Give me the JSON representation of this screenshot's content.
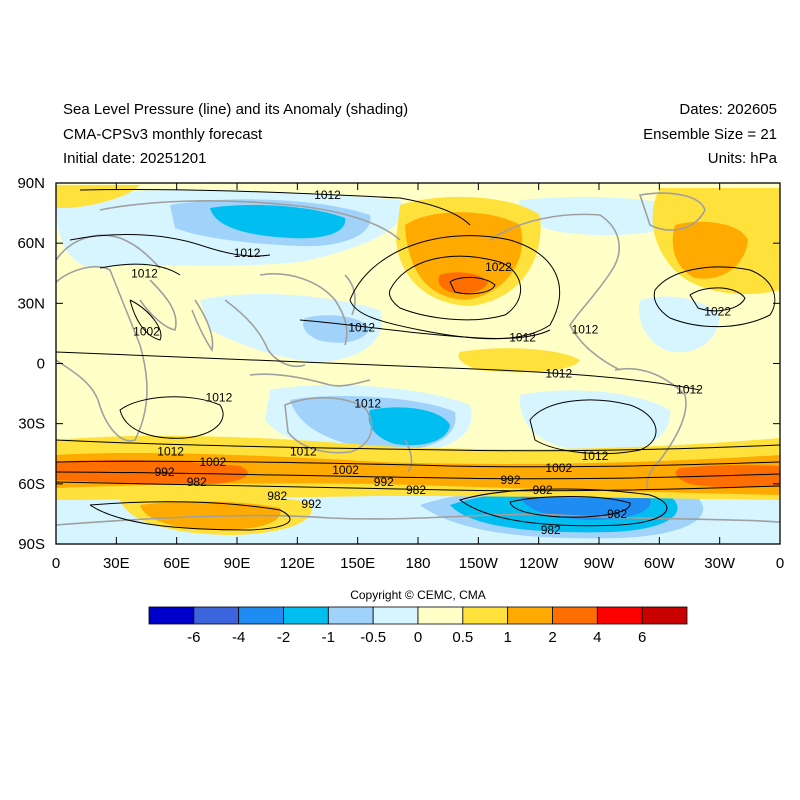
{
  "header": {
    "left": [
      "Sea Level Pressure (line) and its Anomaly (shading)",
      "CMA-CPSv3 monthly forecast",
      "Initial date: 20251201"
    ],
    "right": [
      "Dates: 202605",
      "Ensemble Size = 21",
      "Units: hPa"
    ]
  },
  "map": {
    "lat_labels": [
      "90N",
      "60N",
      "30N",
      "0",
      "30S",
      "60S",
      "90S"
    ],
    "lon_labels": [
      "0",
      "30E",
      "60E",
      "90E",
      "120E",
      "150E",
      "180",
      "150W",
      "120W",
      "90W",
      "60W",
      "30W",
      "0"
    ],
    "contour_labels": [
      {
        "text": "1012",
        "lon": 135,
        "lat": 84
      },
      {
        "text": "1012",
        "lon": 95,
        "lat": 55
      },
      {
        "text": "1012",
        "lon": 44,
        "lat": 45
      },
      {
        "text": "1002",
        "lon": 45,
        "lat": 16
      },
      {
        "text": "1022",
        "lon": 220,
        "lat": 48
      },
      {
        "text": "1012",
        "lon": 152,
        "lat": 18
      },
      {
        "text": "1012",
        "lon": 232,
        "lat": 13
      },
      {
        "text": "1012",
        "lon": 263,
        "lat": 17
      },
      {
        "text": "1022",
        "lon": 329,
        "lat": 26
      },
      {
        "text": "1012",
        "lon": 315,
        "lat": -13
      },
      {
        "text": "1012",
        "lon": 250,
        "lat": -5
      },
      {
        "text": "1012",
        "lon": 81,
        "lat": -17
      },
      {
        "text": "1012",
        "lon": 155,
        "lat": -20
      },
      {
        "text": "1012",
        "lon": 123,
        "lat": -44
      },
      {
        "text": "1012",
        "lon": 57,
        "lat": -44
      },
      {
        "text": "1012",
        "lon": 268,
        "lat": -46
      },
      {
        "text": "1002",
        "lon": 78,
        "lat": -49
      },
      {
        "text": "992",
        "lon": 54,
        "lat": -54
      },
      {
        "text": "982",
        "lon": 70,
        "lat": -59
      },
      {
        "text": "1002",
        "lon": 144,
        "lat": -53
      },
      {
        "text": "992",
        "lon": 163,
        "lat": -59
      },
      {
        "text": "982",
        "lon": 179,
        "lat": -63
      },
      {
        "text": "1002",
        "lon": 250,
        "lat": -52
      },
      {
        "text": "992",
        "lon": 226,
        "lat": -58
      },
      {
        "text": "982",
        "lon": 242,
        "lat": -63
      },
      {
        "text": "982",
        "lon": 110,
        "lat": -66
      },
      {
        "text": "992",
        "lon": 127,
        "lat": -70
      },
      {
        "text": "982",
        "lon": 279,
        "lat": -75
      },
      {
        "text": "982",
        "lon": 246,
        "lat": -83
      }
    ]
  },
  "copyright": "Copyright © CEMC, CMA",
  "colorbar": {
    "colors": [
      "#0000cd",
      "#3c64dc",
      "#1e8cf0",
      "#00bef0",
      "#a0d2fa",
      "#d7f5ff",
      "#ffffc8",
      "#ffe13c",
      "#ffaa00",
      "#ff6e00",
      "#ff0000",
      "#c80000"
    ],
    "labels": [
      "-6",
      "-4",
      "-2",
      "-1",
      "-0.5",
      "0",
      "0.5",
      "1",
      "2",
      "4",
      "6"
    ]
  },
  "colors": {
    "coastline": "#a0a0a0",
    "contour": "#000000"
  }
}
